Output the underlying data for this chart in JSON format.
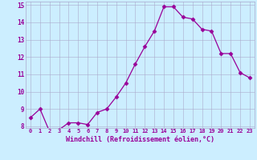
{
  "x": [
    0,
    1,
    2,
    3,
    4,
    5,
    6,
    7,
    8,
    9,
    10,
    11,
    12,
    13,
    14,
    15,
    16,
    17,
    18,
    19,
    20,
    21,
    22,
    23
  ],
  "y": [
    8.5,
    9.0,
    7.7,
    7.8,
    8.2,
    8.2,
    8.1,
    8.8,
    9.0,
    9.7,
    10.5,
    11.6,
    12.6,
    13.5,
    14.9,
    14.9,
    14.3,
    14.2,
    13.6,
    13.5,
    12.2,
    12.2,
    11.1,
    10.8
  ],
  "xlabel": "Windchill (Refroidissement éolien,°C)",
  "ylim": [
    8,
    15
  ],
  "xlim": [
    -0.5,
    23.5
  ],
  "yticks": [
    8,
    9,
    10,
    11,
    12,
    13,
    14,
    15
  ],
  "xticks": [
    0,
    1,
    2,
    3,
    4,
    5,
    6,
    7,
    8,
    9,
    10,
    11,
    12,
    13,
    14,
    15,
    16,
    17,
    18,
    19,
    20,
    21,
    22,
    23
  ],
  "line_color": "#990099",
  "marker": "D",
  "marker_size": 2.5,
  "bg_color": "#cceeff",
  "grid_color": "#aaaacc",
  "font_color": "#990099"
}
